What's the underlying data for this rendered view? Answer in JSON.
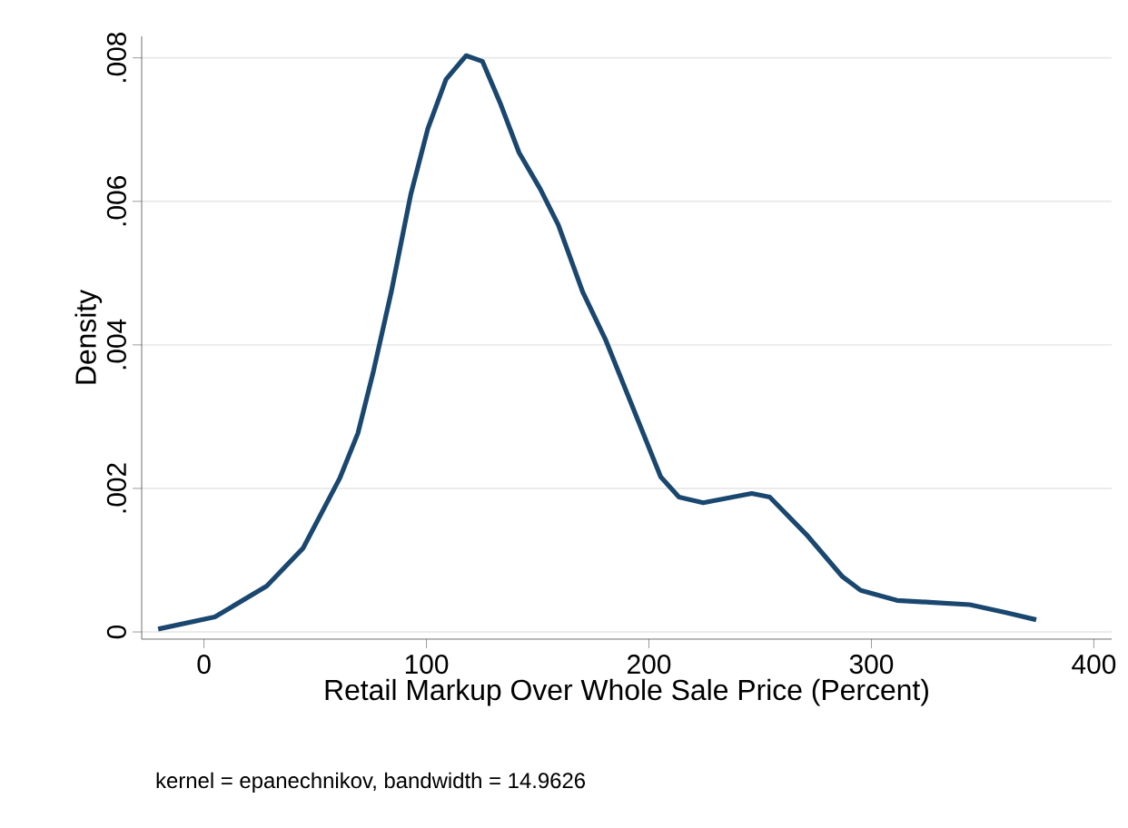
{
  "chart_data": {
    "type": "line",
    "xlabel": "Retail Markup Over Whole Sale Price (Percent)",
    "ylabel": "Density",
    "annotations": [
      "kernel = epanechnikov, bandwidth = 14.9626"
    ],
    "x": [
      -20.6,
      4.9,
      28.2,
      44.6,
      61,
      69.2,
      76,
      84.2,
      92.9,
      100.6,
      108.8,
      117.8,
      125.2,
      133.4,
      141.6,
      151.2,
      159.3,
      170.2,
      180.4,
      205.3,
      213.5,
      224.4,
      246.2,
      254.3,
      270.7,
      287,
      295.2,
      311.5,
      327.8,
      344.2,
      360.5,
      374.1
    ],
    "series": [
      {
        "color": "#1a476f",
        "values": [
          4e-05,
          0.00021,
          0.00064,
          0.00117,
          0.00214,
          0.00277,
          0.00361,
          0.00474,
          0.00609,
          0.00701,
          0.0077,
          0.00803,
          0.00795,
          0.00735,
          0.00668,
          0.00617,
          0.00567,
          0.00474,
          0.00408,
          0.00216,
          0.00188,
          0.0018,
          0.00193,
          0.00188,
          0.00136,
          0.00077,
          0.00058,
          0.00044,
          0.00041,
          0.00038,
          0.00027,
          0.00017
        ]
      }
    ],
    "xlim": [
      -28,
      408
    ],
    "ylim": [
      -0.0001,
      0.0083
    ],
    "xticks": [
      0,
      100,
      200,
      300,
      400
    ],
    "yticks": [
      0,
      {
        "value": 0.002,
        "label": ".002"
      },
      {
        "value": 0.004,
        "label": ".004"
      },
      {
        "value": 0.006,
        "label": ".006"
      },
      {
        "value": 0.008,
        "label": ".008"
      }
    ],
    "grid": "y",
    "marker": "none",
    "line_style": "solid"
  }
}
